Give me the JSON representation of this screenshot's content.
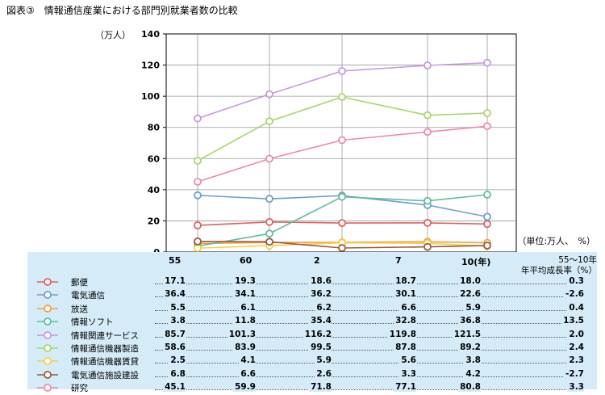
{
  "figure_title": "図表③　情報通信産業における部門別就業者数の比較",
  "unit_note": "（単位:万人、　%）",
  "growth_header": "55〜10年\n年平均成長率（%）",
  "chart_data": {
    "type": "line",
    "categories": [
      "55",
      "60",
      "2",
      "7",
      "10(年)"
    ],
    "ylabel": "（万人）",
    "ylim": [
      0,
      140
    ],
    "yticks": [
      0,
      20,
      40,
      60,
      80,
      100,
      120,
      140
    ],
    "grid": true,
    "series": [
      {
        "name": "郵便",
        "values": [
          17.1,
          19.3,
          18.6,
          18.7,
          18.0
        ],
        "growth": "0.3",
        "color": "#e06060"
      },
      {
        "name": "電気通信",
        "values": [
          36.4,
          34.1,
          36.2,
          30.1,
          22.6
        ],
        "growth": "-2.6",
        "color": "#6f9fcc"
      },
      {
        "name": "放送",
        "values": [
          5.5,
          6.1,
          6.2,
          6.6,
          5.9
        ],
        "growth": "0.4",
        "color": "#f0a040"
      },
      {
        "name": "情報ソフト",
        "values": [
          3.8,
          11.8,
          35.4,
          32.8,
          36.8
        ],
        "growth": "13.5",
        "color": "#5fbf9a"
      },
      {
        "name": "情報関連サービス",
        "values": [
          85.7,
          101.3,
          116.2,
          119.8,
          121.5
        ],
        "growth": "2.0",
        "color": "#c79ad9"
      },
      {
        "name": "情報通信機器製造",
        "values": [
          58.6,
          83.9,
          99.5,
          87.8,
          89.2
        ],
        "growth": "2.4",
        "color": "#a8d66a"
      },
      {
        "name": "情報通信機器賃貸",
        "values": [
          2.5,
          4.1,
          5.9,
          5.6,
          3.8
        ],
        "growth": "2.3",
        "color": "#f5d04a"
      },
      {
        "name": "電気通信施設建設",
        "values": [
          6.8,
          6.6,
          2.6,
          3.3,
          4.2
        ],
        "growth": "-2.7",
        "color": "#9a5a3a"
      },
      {
        "name": "研究",
        "values": [
          45.1,
          59.9,
          71.8,
          77.1,
          80.8
        ],
        "growth": "3.3",
        "color": "#f08aa8"
      }
    ]
  }
}
